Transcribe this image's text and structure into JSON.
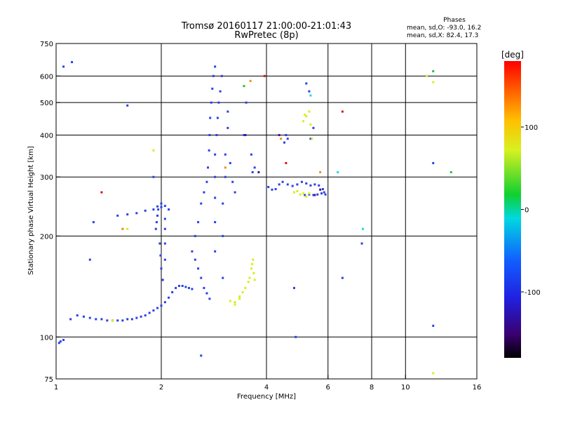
{
  "chart_data": {
    "type": "scatter",
    "title": "Tromsø 20160117 21:00:00-21:01:43",
    "subtitle": "RwPretec (8p)",
    "xlabel": "Frequency [MHz]",
    "ylabel": "Stationary phase Virtual Height [km]",
    "x_scale": "log",
    "y_scale": "log",
    "xlim": [
      1,
      16
    ],
    "ylim": [
      75,
      750
    ],
    "x_ticks": [
      1,
      2,
      4,
      6,
      8,
      10,
      16
    ],
    "x_tick_labels": [
      "1",
      "2",
      "4",
      "6",
      "8",
      "10",
      "16"
    ],
    "x_grid": [
      2,
      4,
      6,
      8,
      10
    ],
    "y_ticks": [
      75,
      100,
      200,
      300,
      400,
      500,
      600,
      750
    ],
    "y_tick_labels": [
      "75",
      "100",
      "200",
      "300",
      "400",
      "500",
      "600",
      "750"
    ],
    "y_grid": [
      100,
      200,
      300,
      400,
      500,
      600
    ],
    "grid": true,
    "stats": {
      "title": "Phases",
      "line1": "mean, sd,O: -93.0, 16.2",
      "line2": "mean, sd,X:  82.4, 17.3"
    },
    "colorbar": {
      "unit": "[deg]",
      "range": [
        -180,
        180
      ],
      "ticks": [
        100,
        0,
        -100
      ],
      "tick_labels": [
        "100",
        "0",
        "-100"
      ],
      "colormap": "rainbow"
    },
    "series": [
      {
        "marker_color": "#2a40e8",
        "points": [
          [
            1.02,
            96
          ],
          [
            1.03,
            97
          ],
          [
            1.05,
            98
          ],
          [
            1.1,
            113
          ],
          [
            1.15,
            116
          ],
          [
            1.2,
            115
          ],
          [
            1.25,
            114
          ],
          [
            1.3,
            113
          ],
          [
            1.35,
            113
          ],
          [
            1.4,
            112
          ],
          [
            1.45,
            112
          ],
          [
            1.5,
            112
          ],
          [
            1.55,
            112
          ],
          [
            1.6,
            113
          ],
          [
            1.65,
            113
          ],
          [
            1.7,
            114
          ],
          [
            1.75,
            115
          ],
          [
            1.8,
            116
          ],
          [
            1.85,
            118
          ],
          [
            1.9,
            120
          ],
          [
            1.95,
            122
          ],
          [
            2.0,
            124
          ],
          [
            2.05,
            127
          ],
          [
            2.1,
            131
          ],
          [
            2.15,
            136
          ],
          [
            2.2,
            140
          ],
          [
            2.25,
            142
          ],
          [
            2.3,
            142
          ],
          [
            2.35,
            141
          ],
          [
            2.4,
            140
          ],
          [
            2.45,
            139
          ],
          [
            1.5,
            230
          ],
          [
            1.6,
            232
          ],
          [
            1.7,
            234
          ],
          [
            1.8,
            238
          ],
          [
            1.9,
            240
          ],
          [
            2.0,
            244
          ],
          [
            2.05,
            246
          ],
          [
            2.1,
            240
          ],
          [
            1.93,
            210
          ],
          [
            1.94,
            220
          ],
          [
            1.95,
            230
          ],
          [
            1.96,
            240
          ],
          [
            1.98,
            190
          ],
          [
            1.99,
            175
          ],
          [
            2.0,
            160
          ],
          [
            2.02,
            148
          ],
          [
            2.05,
            170
          ],
          [
            2.05,
            190
          ],
          [
            2.05,
            210
          ],
          [
            2.05,
            225
          ],
          [
            1.95,
            245
          ],
          [
            2.0,
            250
          ],
          [
            2.45,
            180
          ],
          [
            2.5,
            170
          ],
          [
            2.55,
            160
          ],
          [
            2.6,
            150
          ],
          [
            2.65,
            140
          ],
          [
            2.7,
            135
          ],
          [
            2.75,
            130
          ],
          [
            2.5,
            200
          ],
          [
            2.55,
            220
          ],
          [
            2.6,
            250
          ],
          [
            2.65,
            270
          ],
          [
            2.7,
            290
          ],
          [
            2.72,
            320
          ],
          [
            2.74,
            360
          ],
          [
            2.75,
            400
          ],
          [
            2.76,
            450
          ],
          [
            2.78,
            500
          ],
          [
            2.8,
            550
          ],
          [
            2.82,
            600
          ],
          [
            2.85,
            640
          ],
          [
            2.85,
            180
          ],
          [
            2.85,
            220
          ],
          [
            2.85,
            260
          ],
          [
            2.85,
            300
          ],
          [
            2.85,
            350
          ],
          [
            2.88,
            400
          ],
          [
            2.9,
            450
          ],
          [
            2.92,
            500
          ],
          [
            2.95,
            540
          ],
          [
            2.98,
            600
          ],
          [
            3.0,
            150
          ],
          [
            3.0,
            200
          ],
          [
            3.0,
            250
          ],
          [
            3.05,
            300
          ],
          [
            3.05,
            350
          ],
          [
            3.1,
            420
          ],
          [
            3.1,
            470
          ],
          [
            3.15,
            330
          ],
          [
            3.2,
            290
          ],
          [
            3.25,
            270
          ],
          [
            4.05,
            280
          ],
          [
            4.15,
            275
          ],
          [
            4.25,
            276
          ],
          [
            4.35,
            285
          ],
          [
            4.45,
            290
          ],
          [
            4.6,
            285
          ],
          [
            4.75,
            282
          ],
          [
            4.9,
            285
          ],
          [
            5.05,
            290
          ],
          [
            5.2,
            287
          ],
          [
            5.35,
            283
          ],
          [
            5.5,
            285
          ],
          [
            5.65,
            283
          ],
          [
            5.8,
            276
          ],
          [
            5.85,
            270
          ],
          [
            5.9,
            266
          ],
          [
            5.75,
            268
          ],
          [
            5.6,
            266
          ],
          [
            5.45,
            265
          ],
          [
            5.3,
            266
          ],
          [
            5.15,
            265
          ],
          [
            4.5,
            380
          ],
          [
            4.55,
            400
          ],
          [
            4.6,
            390
          ],
          [
            5.2,
            570
          ],
          [
            5.3,
            540
          ],
          [
            5.35,
            390
          ],
          [
            5.45,
            420
          ],
          [
            3.45,
            400
          ],
          [
            3.5,
            500
          ],
          [
            3.62,
            350
          ],
          [
            3.65,
            310
          ],
          [
            3.7,
            320
          ],
          [
            1.28,
            220
          ],
          [
            1.25,
            170
          ],
          [
            1.6,
            490
          ],
          [
            1.05,
            640
          ],
          [
            1.11,
            660
          ],
          [
            7.5,
            190
          ],
          [
            6.6,
            150
          ],
          [
            4.8,
            140
          ],
          [
            12.0,
            108
          ],
          [
            12.0,
            330
          ],
          [
            1.9,
            300
          ],
          [
            4.85,
            100
          ],
          [
            2.6,
            88
          ]
        ]
      },
      {
        "marker_color": "#d8ee18",
        "points": [
          [
            3.15,
            128
          ],
          [
            3.25,
            127
          ],
          [
            3.35,
            130
          ],
          [
            3.42,
            136
          ],
          [
            3.48,
            140
          ],
          [
            3.55,
            146
          ],
          [
            3.58,
            150
          ],
          [
            3.62,
            160
          ],
          [
            3.64,
            165
          ],
          [
            3.66,
            170
          ],
          [
            3.68,
            155
          ],
          [
            3.7,
            148
          ],
          [
            3.35,
            132
          ],
          [
            3.25,
            125
          ],
          [
            4.8,
            270
          ],
          [
            4.9,
            272
          ],
          [
            5.0,
            266
          ],
          [
            5.1,
            268
          ],
          [
            5.2,
            262
          ],
          [
            5.3,
            268
          ],
          [
            5.1,
            440
          ],
          [
            5.2,
            455
          ],
          [
            5.3,
            470
          ],
          [
            5.35,
            430
          ],
          [
            5.15,
            460
          ],
          [
            1.55,
            210
          ],
          [
            1.45,
            112
          ],
          [
            1.6,
            210
          ],
          [
            1.9,
            360
          ],
          [
            5.4,
            390
          ],
          [
            12.0,
            575
          ],
          [
            12.0,
            78
          ],
          [
            11.5,
            600
          ]
        ]
      },
      {
        "marker_color": "#e01010",
        "points": [
          [
            1.35,
            270
          ],
          [
            4.55,
            330
          ],
          [
            3.95,
            600
          ],
          [
            6.6,
            470
          ]
        ]
      },
      {
        "marker_color": "#e89020",
        "points": [
          [
            3.05,
            320
          ],
          [
            1.55,
            210
          ],
          [
            4.4,
            390
          ],
          [
            5.7,
            310
          ],
          [
            3.6,
            580
          ]
        ]
      },
      {
        "marker_color": "#20d8d8",
        "points": [
          [
            5.35,
            525
          ],
          [
            6.4,
            310
          ],
          [
            7.55,
            210
          ]
        ]
      },
      {
        "marker_color": "#4010a0",
        "points": [
          [
            3.48,
            400
          ],
          [
            4.35,
            400
          ],
          [
            5.5,
            265
          ],
          [
            5.7,
            275
          ],
          [
            3.8,
            310
          ]
        ]
      },
      {
        "marker_color": "#20c040",
        "points": [
          [
            12.0,
            620
          ],
          [
            3.45,
            560
          ],
          [
            13.5,
            310
          ]
        ]
      }
    ]
  }
}
